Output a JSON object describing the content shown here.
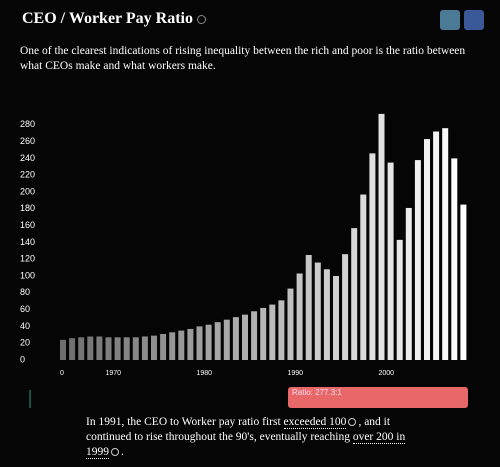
{
  "header": {
    "title": "CEO / Worker Pay Ratio",
    "description": "One of the clearest indications of rising inequality between the rich and poor is the ratio between what CEOs make and what workers make."
  },
  "chart_data": {
    "type": "bar",
    "categories": [
      "0",
      null,
      null,
      null,
      null,
      "1970",
      null,
      null,
      null,
      null,
      null,
      null,
      null,
      null,
      null,
      "1980",
      null,
      null,
      null,
      null,
      null,
      null,
      null,
      null,
      null,
      "1990",
      null,
      null,
      null,
      null,
      null,
      null,
      null,
      null,
      null,
      "2000",
      null,
      null,
      null,
      null,
      null,
      null,
      null,
      null,
      null
    ],
    "values": [
      24,
      26,
      27,
      28,
      28,
      27,
      27,
      27,
      27,
      28,
      29,
      31,
      33,
      35,
      37,
      40,
      42,
      45,
      48,
      51,
      54,
      58,
      62,
      66,
      71,
      85,
      103,
      125,
      116,
      108,
      100,
      126,
      157,
      197,
      246,
      293,
      235,
      143,
      181,
      238,
      263,
      272,
      276,
      240,
      185
    ],
    "ylim": [
      0,
      300
    ],
    "yticks": [
      0,
      20,
      40,
      60,
      80,
      100,
      120,
      140,
      160,
      180,
      200,
      220,
      240,
      260,
      280
    ],
    "color_start": "#6e6e6e",
    "color_end": "#ffffff"
  },
  "tooltip": {
    "label": "Ratio: 277.3:1"
  },
  "caption": {
    "before": "In 1991, the CEO to Worker pay ratio first ",
    "link1": "exceeded 100",
    "middle": ", and it continued to rise throughout the 90's, eventually reaching ",
    "link2": "over 200 in 1999",
    "after": "."
  }
}
